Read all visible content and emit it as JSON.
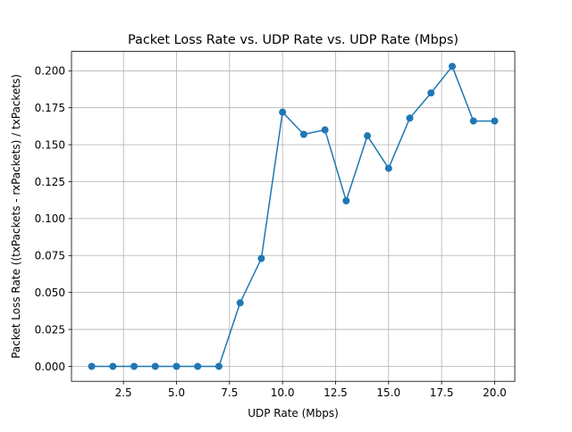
{
  "chart_data": {
    "type": "line",
    "title": "Packet Loss Rate vs. UDP Rate vs. UDP Rate (Mbps)",
    "xlabel": "UDP Rate (Mbps)",
    "ylabel": "Packet Loss Rate ((txPackets - rxPackets) / txPackets)",
    "x": [
      1,
      2,
      3,
      4,
      5,
      6,
      7,
      8,
      9,
      10,
      11,
      12,
      13,
      14,
      15,
      16,
      17,
      18,
      19,
      20
    ],
    "series": [
      {
        "values": [
          0.0,
          0.0,
          0.0,
          0.0,
          0.0,
          0.0,
          0.0,
          0.043,
          0.073,
          0.172,
          0.157,
          0.16,
          0.112,
          0.156,
          0.134,
          0.168,
          0.185,
          0.203,
          0.166,
          0.166
        ],
        "color": "#1f77b4",
        "marker": "circle"
      }
    ],
    "xlim": [
      0.05,
      20.95
    ],
    "ylim": [
      -0.0101,
      0.2131
    ],
    "xticks": [
      "2.5",
      "5.0",
      "7.5",
      "10.0",
      "12.5",
      "15.0",
      "17.5",
      "20.0"
    ],
    "xtick_values": [
      2.5,
      5.0,
      7.5,
      10.0,
      12.5,
      15.0,
      17.5,
      20.0
    ],
    "yticks": [
      "0.000",
      "0.025",
      "0.050",
      "0.075",
      "0.100",
      "0.125",
      "0.150",
      "0.175",
      "0.200"
    ],
    "ytick_values": [
      0.0,
      0.025,
      0.05,
      0.075,
      0.1,
      0.125,
      0.15,
      0.175,
      0.2
    ],
    "grid": true,
    "legend": "none"
  }
}
